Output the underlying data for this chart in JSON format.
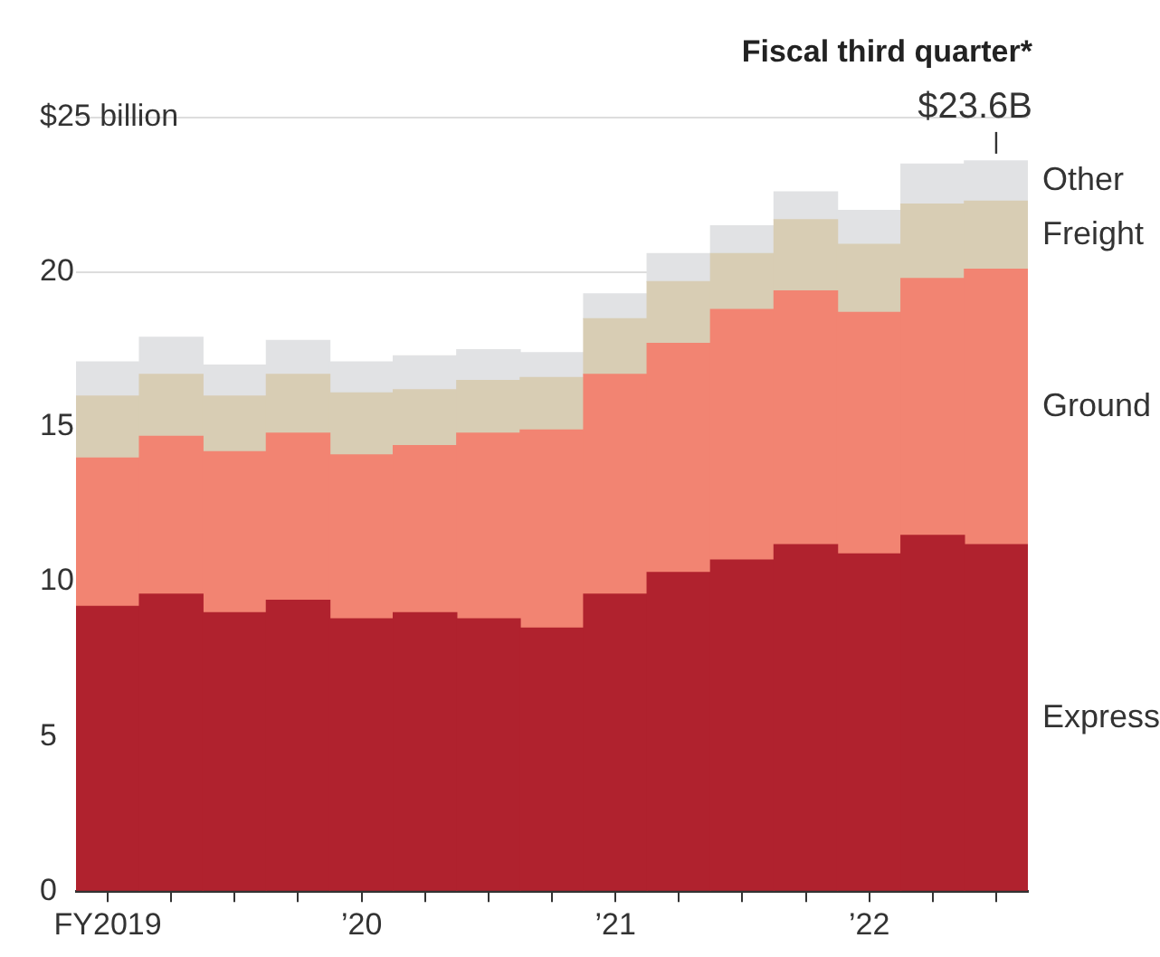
{
  "chart_data": {
    "type": "bar",
    "stacked": true,
    "legend": false,
    "grid": "y",
    "categories": [
      "FY2019",
      null,
      null,
      null,
      "’20",
      null,
      null,
      null,
      "’21",
      null,
      null,
      null,
      "’22",
      null,
      null
    ],
    "ylim": [
      0,
      25
    ],
    "yticks": [
      0,
      5,
      10,
      15,
      20,
      {
        "value": 25,
        "label": "$25 billion"
      }
    ],
    "series": [
      {
        "name": "Express",
        "color": "#b0222e",
        "values": [
          9.2,
          9.6,
          9.0,
          9.4,
          8.8,
          9.0,
          8.8,
          8.5,
          9.6,
          10.3,
          10.7,
          11.2,
          10.9,
          11.5,
          11.2
        ]
      },
      {
        "name": "Ground",
        "color": "#f28472",
        "values": [
          4.8,
          5.1,
          5.2,
          5.4,
          5.3,
          5.4,
          6.0,
          6.4,
          7.1,
          7.4,
          8.1,
          8.2,
          7.8,
          8.3,
          8.9
        ]
      },
      {
        "name": "Freight",
        "color": "#d8cdb4",
        "values": [
          2.0,
          2.0,
          1.8,
          1.9,
          2.0,
          1.8,
          1.7,
          1.7,
          1.8,
          2.0,
          1.8,
          2.3,
          2.2,
          2.4,
          2.2
        ]
      },
      {
        "name": "Other",
        "color": "#e1e2e4",
        "values": [
          1.1,
          1.2,
          1.0,
          1.1,
          1.0,
          1.1,
          1.0,
          0.8,
          0.8,
          0.9,
          0.9,
          0.9,
          1.1,
          1.3,
          1.3
        ]
      }
    ],
    "annotations": [
      "Fiscal third quarter*",
      {
        "text": "$23.6B",
        "y": 23.6
      }
    ]
  }
}
